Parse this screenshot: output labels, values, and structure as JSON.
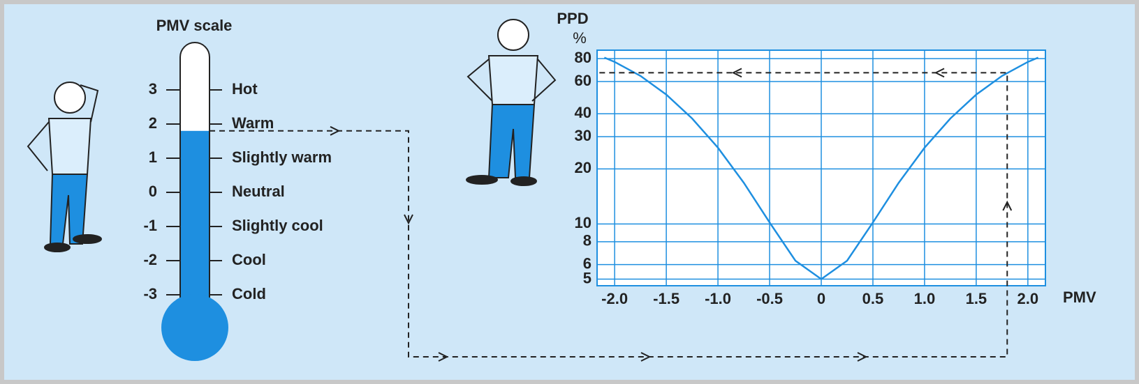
{
  "thermometer": {
    "title": "PMV scale",
    "levels": [
      {
        "value": 3,
        "label": "Hot"
      },
      {
        "value": 2,
        "label": "Warm"
      },
      {
        "value": 1,
        "label": "Slightly warm"
      },
      {
        "value": 0,
        "label": "Neutral"
      },
      {
        "value": -1,
        "label": "Slightly cool"
      },
      {
        "value": -2,
        "label": "Cool"
      },
      {
        "value": -3,
        "label": "Cold"
      }
    ],
    "fill_level": 1.8
  },
  "ppd_chart": {
    "type": "line",
    "y_title": "PPD",
    "y_unit": "%",
    "x_title": "PMV",
    "xlim": [
      -2.17,
      2.17
    ],
    "ylim": [
      4.6,
      89
    ],
    "log_y": true,
    "grid": true,
    "xticks": [
      {
        "value": -2,
        "label": "-2.0"
      },
      -1.5,
      {
        "value": -1,
        "label": "-1.0"
      },
      -0.5,
      0,
      0.5,
      {
        "value": 1,
        "label": "1.0"
      },
      1.5,
      {
        "value": 2,
        "label": "2.0"
      }
    ],
    "yticks": [
      5,
      6,
      8,
      10,
      20,
      30,
      40,
      60,
      80
    ],
    "x": [
      -2.1,
      -2,
      -1.75,
      -1.5,
      -1.25,
      -1,
      -0.75,
      -0.5,
      -0.25,
      0,
      0.25,
      0.5,
      0.75,
      1,
      1.25,
      1.5,
      1.75,
      2,
      2.1
    ],
    "series": [
      {
        "color": "#1e8fe0",
        "values": [
          81.1,
          76.8,
          64.4,
          50.9,
          37.7,
          26.1,
          16.8,
          10.2,
          6.3,
          5,
          6.3,
          10.2,
          16.8,
          26.1,
          37.7,
          50.9,
          64.4,
          76.8,
          81.1
        ]
      }
    ],
    "example": {
      "pmv": 1.8,
      "ppd": 67
    }
  }
}
